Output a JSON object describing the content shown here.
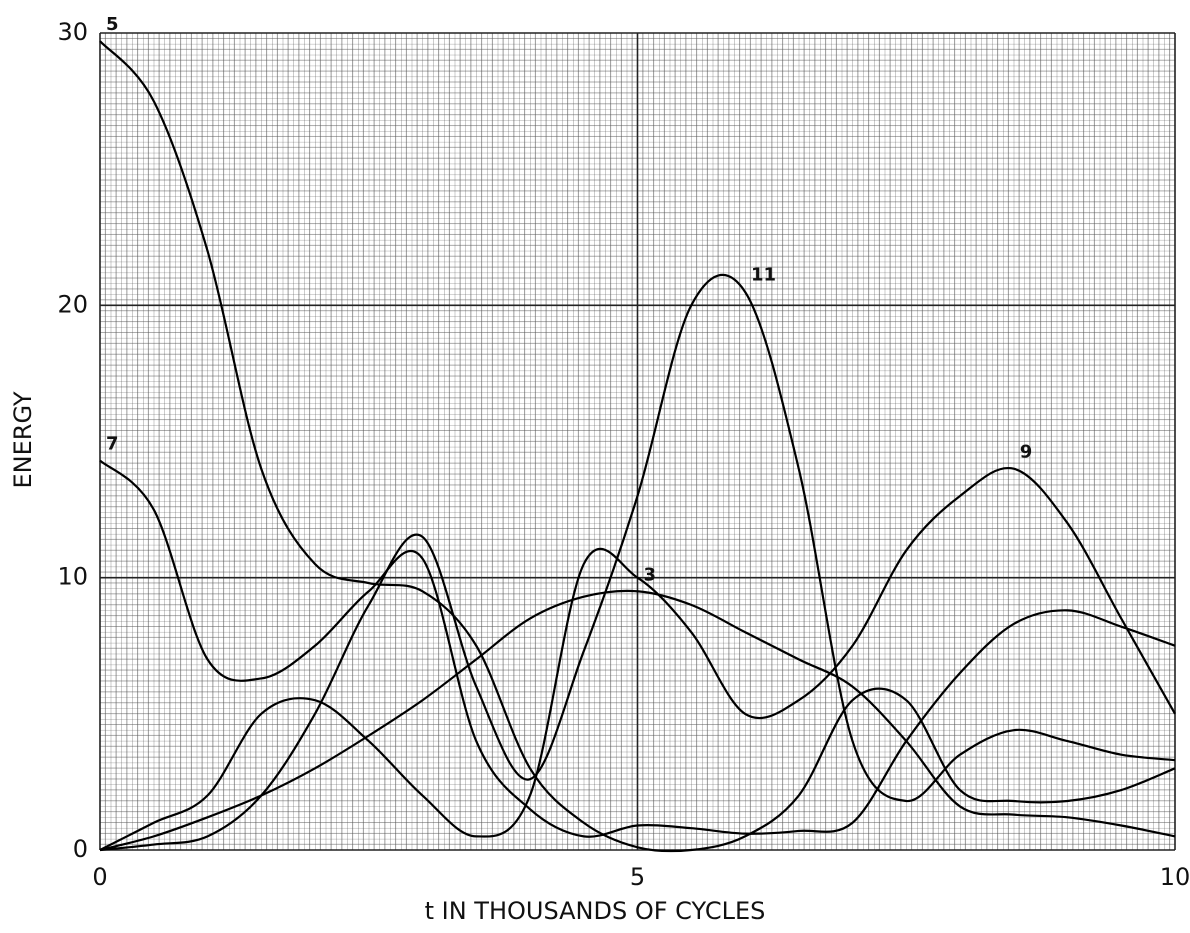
{
  "chart_data": {
    "type": "line",
    "xlabel": "t IN THOUSANDS OF CYCLES",
    "ylabel": "ENERGY",
    "x": [
      0,
      0.5,
      1,
      1.5,
      2,
      2.5,
      3,
      3.5,
      4,
      4.5,
      5,
      5.5,
      6,
      6.5,
      7,
      7.5,
      8,
      8.5,
      9,
      9.5,
      10
    ],
    "series": [
      {
        "name": "3",
        "color": "#000000",
        "values": [
          0,
          0.5,
          1.2,
          2,
          3,
          4.2,
          5.5,
          7,
          8.5,
          9.3,
          9.5,
          9,
          8,
          7,
          6,
          4,
          1.6,
          1.3,
          1.2,
          0.9,
          0.5
        ]
      },
      {
        "name": "5",
        "color": "#000000",
        "values": [
          29.7,
          27.5,
          22,
          14,
          10.5,
          9.8,
          9.5,
          7.5,
          3,
          1,
          0.1,
          0,
          0.5,
          2,
          5.5,
          5.5,
          2.2,
          1.8,
          1.8,
          2.2,
          3
        ]
      },
      {
        "name": "7",
        "color": "#000000",
        "values": [
          14.3,
          12.5,
          7,
          6.3,
          7.5,
          9.5,
          10.7,
          4,
          1.5,
          0.5,
          0.9,
          0.8,
          0.6,
          0.7,
          1,
          4,
          6.5,
          8.3,
          8.8,
          8.2,
          7.5
        ]
      },
      {
        "name": "9",
        "color": "#000000",
        "values": [
          0,
          1,
          2,
          5,
          5.5,
          4,
          2,
          0.5,
          2,
          10.5,
          10,
          8,
          5,
          5.5,
          7.5,
          11,
          13,
          14,
          12,
          8.5,
          5
        ]
      },
      {
        "name": "11",
        "color": "#000000",
        "values": [
          0,
          0.2,
          0.5,
          2,
          5,
          9,
          11.5,
          6,
          2.6,
          7.3,
          13,
          20,
          20.5,
          14,
          4,
          1.8,
          3.5,
          4.4,
          4,
          3.5,
          3.3
        ]
      }
    ],
    "xlim": [
      0,
      10
    ],
    "xticks": [
      0,
      5,
      10
    ],
    "ylim": [
      0,
      30
    ],
    "yticks": [
      0,
      10,
      20,
      30
    ],
    "grid": true
  }
}
